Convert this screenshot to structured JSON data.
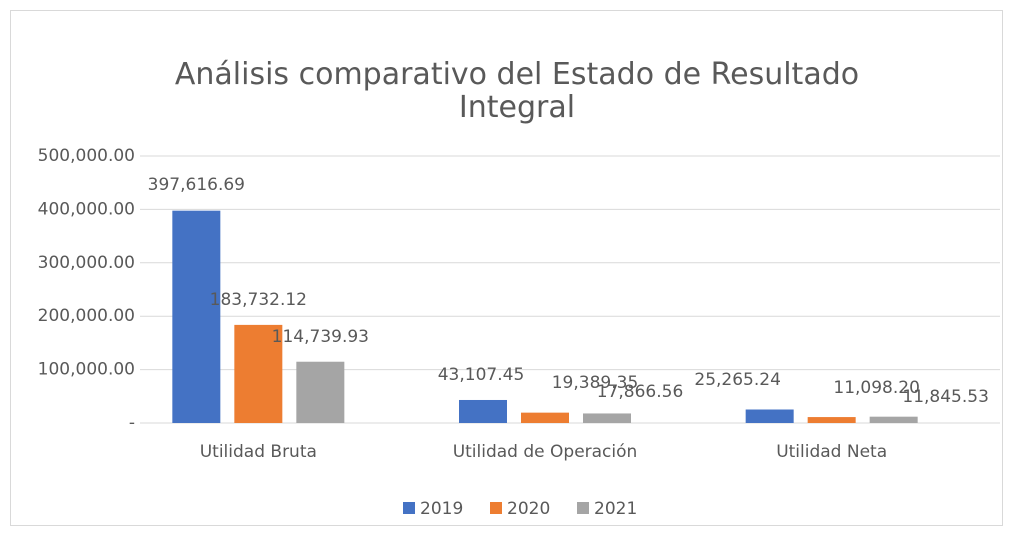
{
  "chart_data": {
    "type": "bar",
    "title": "Análisis comparativo del Estado de Resultado Integral",
    "categories": [
      "Utilidad Bruta",
      "Utilidad de Operación",
      "Utilidad Neta"
    ],
    "series": [
      {
        "name": "2019",
        "color": "#4472c4",
        "values": [
          397616.69,
          43107.45,
          25265.24
        ],
        "value_labels": [
          "397,616.69",
          "43,107.45",
          "25,265.24"
        ]
      },
      {
        "name": "2020",
        "color": "#ed7d31",
        "values": [
          183732.12,
          19389.35,
          11098.2
        ],
        "value_labels": [
          "183,732.12",
          "19,389.35",
          "11,098.20"
        ]
      },
      {
        "name": "2021",
        "color": "#a5a5a5",
        "values": [
          114739.93,
          17866.56,
          11845.53
        ],
        "value_labels": [
          "114,739.93",
          "17,866.56",
          "11,845.53"
        ]
      }
    ],
    "ylim": [
      0,
      500000
    ],
    "yticks": [
      {
        "value": 0,
        "label": "-"
      },
      {
        "value": 100000,
        "label": "100,000.00"
      },
      {
        "value": 200000,
        "label": "200,000.00"
      },
      {
        "value": 300000,
        "label": "300,000.00"
      },
      {
        "value": 400000,
        "label": "400,000.00"
      },
      {
        "value": 500000,
        "label": "500,000.00"
      }
    ],
    "grid": true,
    "legend": "bottom"
  }
}
